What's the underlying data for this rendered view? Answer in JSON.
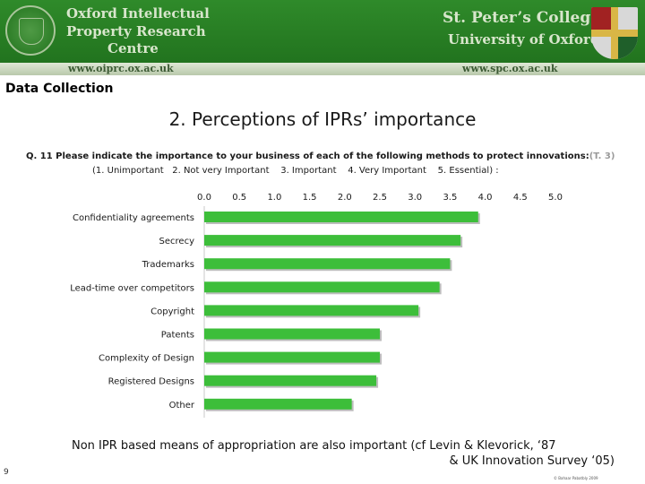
{
  "header": {
    "left_title_line1": "Oxford Intellectual",
    "left_title_line2": "Property Research",
    "left_title_line3": "Centre",
    "left_url": "www.oiprc.ox.ac.uk",
    "right_title_line1": "St. Peter’s College",
    "right_title_line2": "University of Oxford",
    "right_url": "www.spc.ox.ac.uk",
    "left_crest_icon": "university-crest-icon",
    "right_crest_icon": "college-shield-icon",
    "brand_color": "#2a7f25"
  },
  "section_label": "Data Collection",
  "title": "2. Perceptions of IPRs’ importance",
  "question": {
    "text": "Q. 11   Please indicate the importance to your business of each of the following methods to protect  innovations:",
    "ref": "(T. 3)",
    "scale": "(1. Unimportant   2. Not very Important    3. Important    4. Very Important    5. Essential) :"
  },
  "chart_data": {
    "type": "bar",
    "orientation": "horizontal",
    "categories": [
      "Confidentiality agreements",
      "Secrecy",
      "Trademarks",
      "Lead-time over competitors",
      "Copyright",
      "Patents",
      "Complexity of Design",
      "Registered Designs",
      "Other"
    ],
    "values": [
      3.9,
      3.65,
      3.5,
      3.35,
      3.05,
      2.5,
      2.5,
      2.45,
      2.1
    ],
    "xlim": [
      0,
      5
    ],
    "xticks": [
      "0.0",
      "0.5",
      "1.0",
      "1.5",
      "2.0",
      "2.5",
      "3.0",
      "3.5",
      "4.0",
      "4.5",
      "5.0"
    ],
    "bar_color": "#3dbe3a",
    "axis_position": "top",
    "grid": false
  },
  "note": {
    "line1": "Non IPR based means of appropriation are also important  (cf Levin & Klevorick, ‘87",
    "line2": "& UK Innovation Survey ‘05)"
  },
  "page_number": "9",
  "copyright": "© Bahaar Pabatbly 2009"
}
